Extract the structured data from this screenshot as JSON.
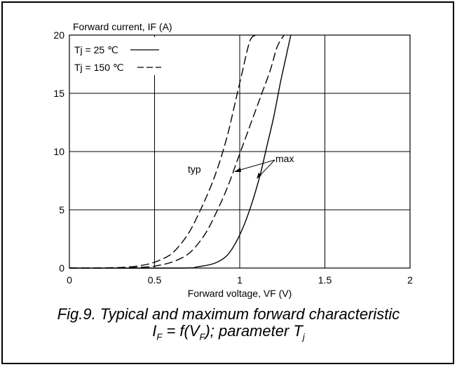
{
  "chart_data": {
    "type": "line",
    "ylabel": "Forward current, IF (A)",
    "xlabel": "Forward voltage, VF (V)",
    "xlim": [
      0,
      2
    ],
    "ylim": [
      0,
      20
    ],
    "xticks": [
      "0",
      "0.5",
      "1",
      "1.5",
      "2"
    ],
    "yticks": [
      "0",
      "5",
      "10",
      "15",
      "20"
    ],
    "grid": true,
    "legend": {
      "placement": "top-left",
      "entries": [
        {
          "label": "Tj = 25 ℃",
          "style": "solid"
        },
        {
          "label": "Tj = 150 ℃",
          "style": "dashed"
        }
      ]
    },
    "annotations": [
      "typ",
      "max"
    ],
    "series": [
      {
        "style": "dashed",
        "x": [
          0.0,
          0.3,
          0.45,
          0.55,
          0.62,
          0.7,
          0.77,
          0.83,
          0.88,
          0.93,
          0.97,
          1.01,
          1.06,
          1.1
        ],
        "y": [
          0.0,
          0.05,
          0.3,
          0.8,
          1.5,
          3.0,
          5.0,
          7.0,
          9.0,
          11.5,
          14.0,
          16.5,
          19.5,
          20.0
        ]
      },
      {
        "style": "dashed",
        "x": [
          0.0,
          0.4,
          0.55,
          0.65,
          0.72,
          0.8,
          0.87,
          0.93,
          0.98,
          1.03,
          1.08,
          1.13,
          1.18,
          1.22,
          1.26
        ],
        "y": [
          0.0,
          0.05,
          0.3,
          0.8,
          1.5,
          3.0,
          5.0,
          7.0,
          9.0,
          11.0,
          13.0,
          15.0,
          17.0,
          19.0,
          20.0
        ]
      },
      {
        "style": "solid",
        "x": [
          0.0,
          0.65,
          0.75,
          0.85,
          0.92,
          0.97,
          1.02,
          1.07,
          1.12,
          1.16,
          1.2,
          1.24,
          1.27,
          1.3
        ],
        "y": [
          0.0,
          0.0,
          0.1,
          0.4,
          1.0,
          2.0,
          3.5,
          5.5,
          8.0,
          10.5,
          13.0,
          16.0,
          18.0,
          20.0
        ]
      }
    ]
  },
  "caption": {
    "line1": "Fig.9.  Typical and maximum forward characteristic",
    "line2_i": "I",
    "line2_f_sub": "F",
    "line2_mid": " = f(V",
    "line2_f_sub2": "F",
    "line2_tail": "); parameter T",
    "line2_j_sub": "j"
  }
}
